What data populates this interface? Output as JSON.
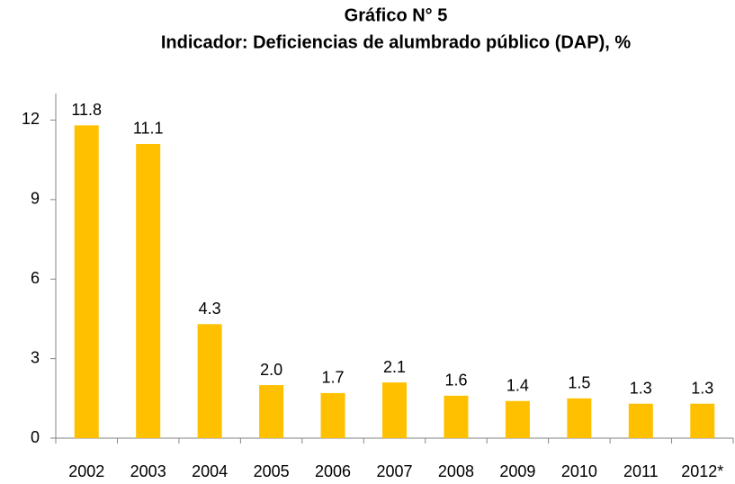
{
  "chart_data": {
    "type": "bar",
    "title": "Gráfico N° 5",
    "subtitle": "Indicador: Deficiencias de alumbrado público (DAP), %",
    "categories": [
      "2002",
      "2003",
      "2004",
      "2005",
      "2006",
      "2007",
      "2008",
      "2009",
      "2010",
      "2011",
      "2012*"
    ],
    "values": [
      11.8,
      11.1,
      4.3,
      2.0,
      1.7,
      2.1,
      1.6,
      1.4,
      1.5,
      1.3,
      1.3
    ],
    "value_labels": [
      "11.8",
      "11.1",
      "4.3",
      "2.0",
      "1.7",
      "2.1",
      "1.6",
      "1.4",
      "1.5",
      "1.3",
      "1.3"
    ],
    "color": "#ffc000",
    "ylim": [
      0,
      13
    ],
    "yticks": [
      0,
      3,
      6,
      9,
      12
    ],
    "grid": false
  }
}
